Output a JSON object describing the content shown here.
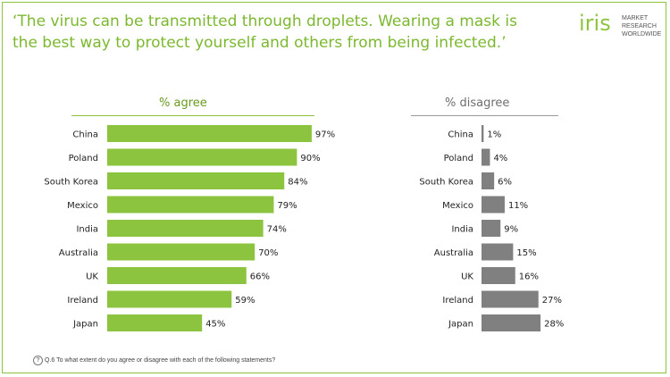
{
  "title": "‘The virus can be transmitted through droplets. Wearing a mask is the best way to protect yourself and others from being infected.’",
  "logo": {
    "word": "iris",
    "lines": [
      "MARKET",
      "RESEARCH",
      "WORLDWIDE"
    ]
  },
  "footnote": {
    "icon": "?",
    "text": "Q.6 To what extent do you agree or disagree with each of the following statements?"
  },
  "colors": {
    "agree": "#8dc43f",
    "disagree": "#808080",
    "title": "#7cb82f"
  },
  "chart_data": [
    {
      "type": "bar",
      "orientation": "horizontal",
      "title": "% agree",
      "categories": [
        "China",
        "Poland",
        "South Korea",
        "Mexico",
        "India",
        "Australia",
        "UK",
        "Ireland",
        "Japan"
      ],
      "values": [
        97,
        90,
        84,
        79,
        74,
        70,
        66,
        59,
        45
      ],
      "labels": [
        "97%",
        "90%",
        "84%",
        "79%",
        "74%",
        "70%",
        "66%",
        "59%",
        "45%"
      ],
      "xlim": [
        0,
        100
      ]
    },
    {
      "type": "bar",
      "orientation": "horizontal",
      "title": "% disagree",
      "categories": [
        "China",
        "Poland",
        "South Korea",
        "Mexico",
        "India",
        "Australia",
        "UK",
        "Ireland",
        "Japan"
      ],
      "values": [
        1,
        4,
        6,
        11,
        9,
        15,
        16,
        27,
        28
      ],
      "labels": [
        "1%",
        "4%",
        "6%",
        "11%",
        "9%",
        "15%",
        "16%",
        "27%",
        "28%"
      ],
      "xlim": [
        0,
        100
      ]
    }
  ]
}
